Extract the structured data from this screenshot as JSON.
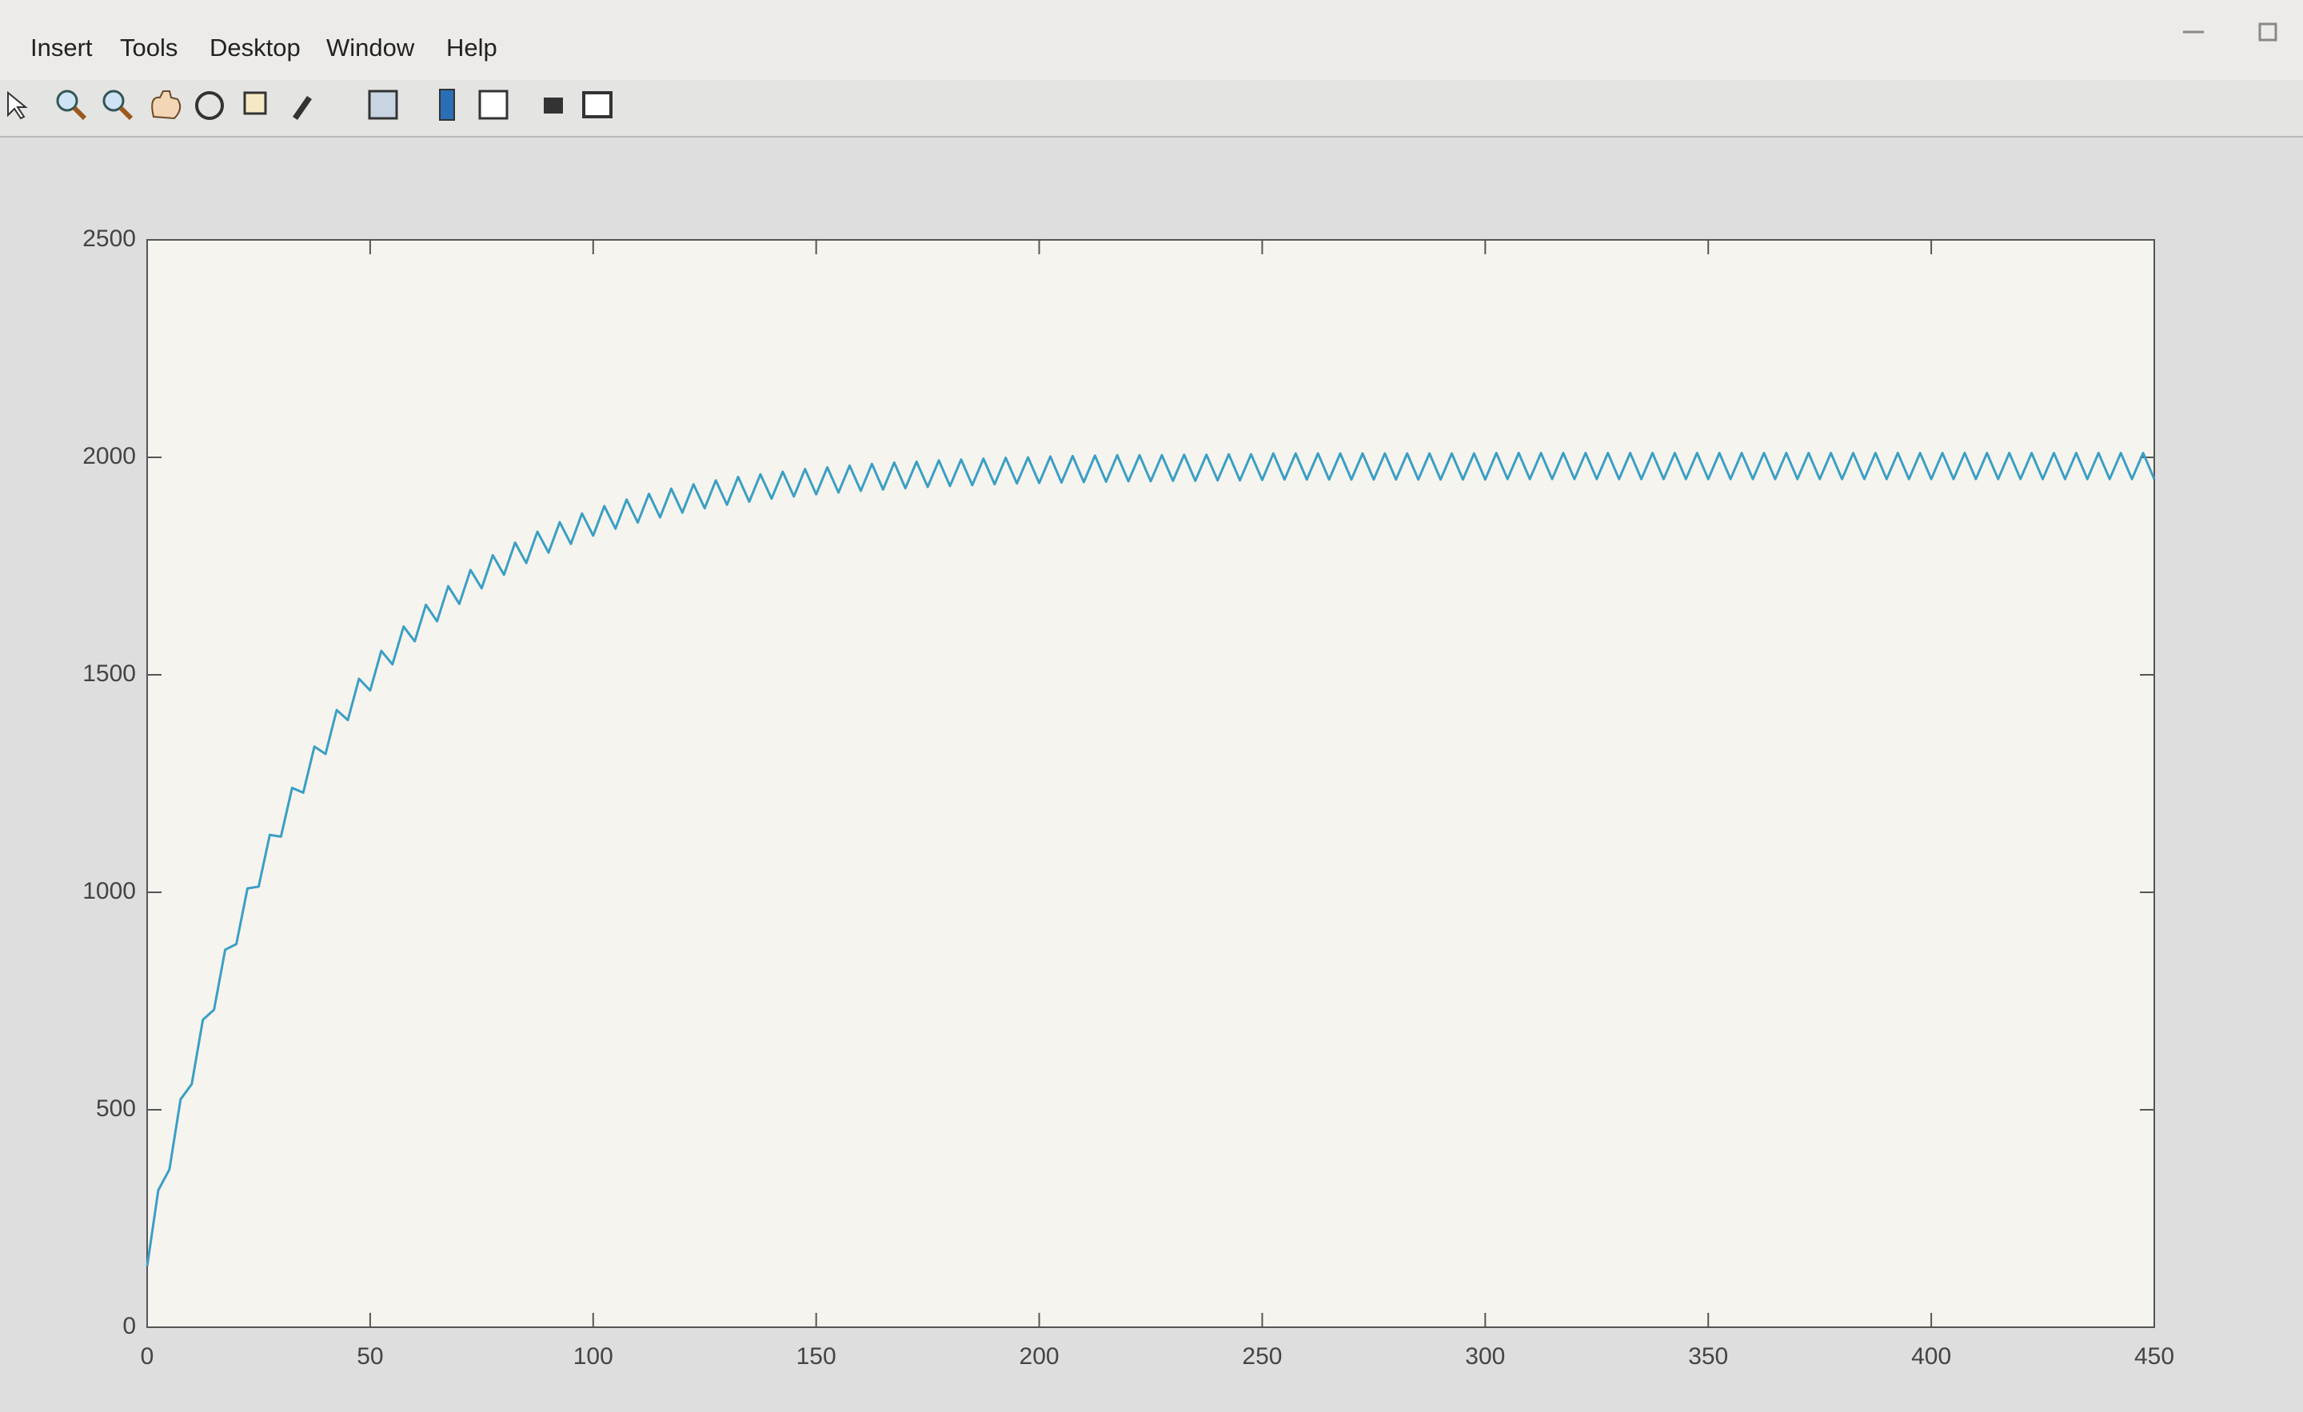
{
  "menu": [
    "Insert",
    "Tools",
    "Desktop",
    "Window",
    "Help"
  ],
  "chart_data": {
    "type": "line",
    "x": [
      0,
      2.5,
      5,
      7.5,
      10,
      12.5,
      15,
      17.5,
      20,
      22.5,
      25,
      27.5,
      30,
      32.5,
      35,
      37.5,
      40,
      42.5,
      45,
      47.5,
      50,
      52.5,
      55,
      57.5,
      60,
      62.5,
      65,
      67.5,
      70,
      72.5,
      75,
      77.5,
      80,
      82.5,
      85,
      87.5,
      90,
      92.5,
      95,
      97.5,
      100,
      102.5,
      105,
      107.5,
      110,
      112.5,
      115,
      117.5,
      120,
      122.5,
      125,
      127.5,
      130,
      132.5,
      135,
      137.5,
      140,
      142.5,
      145,
      147.5,
      150,
      152.5,
      155,
      157.5,
      160,
      162.5,
      165,
      167.5,
      170,
      172.5,
      175,
      177.5,
      180,
      182.5,
      185,
      187.5,
      190,
      192.5,
      195,
      197.5,
      200,
      202.5,
      205,
      207.5,
      210,
      212.5,
      215,
      217.5,
      220,
      222.5,
      225,
      227.5,
      230,
      232.5,
      235,
      237.5,
      240,
      242.5,
      245,
      247.5,
      250,
      252.5,
      255,
      257.5,
      260,
      262.5,
      265,
      267.5,
      270,
      272.5,
      275,
      277.5,
      280,
      282.5,
      285,
      287.5,
      290,
      292.5,
      295,
      297.5,
      300,
      302.5,
      305,
      307.5,
      310,
      312.5,
      315,
      317.5,
      320,
      322.5,
      325,
      327.5,
      330,
      332.5,
      335,
      337.5,
      340,
      342.5,
      345,
      347.5,
      350,
      352.5,
      355,
      357.5,
      360,
      362.5,
      365,
      367.5,
      370,
      372.5,
      375,
      377.5,
      380,
      382.5,
      385,
      387.5,
      390,
      392.5,
      395,
      397.5,
      400,
      402.5,
      405,
      407.5,
      410,
      412.5,
      415,
      417.5,
      420,
      422.5,
      425,
      427.5,
      430,
      432.5,
      435,
      437.5,
      440,
      442.5,
      445,
      447.5,
      450
    ],
    "values": [
      140,
      315,
      363,
      524,
      559,
      707,
      730,
      868,
      881,
      1009,
      1013,
      1132,
      1128,
      1240,
      1229,
      1335,
      1318,
      1419,
      1396,
      1491,
      1464,
      1555,
      1524,
      1611,
      1577,
      1661,
      1623,
      1704,
      1663,
      1741,
      1699,
      1775,
      1730,
      1804,
      1757,
      1829,
      1781,
      1851,
      1801,
      1871,
      1820,
      1888,
      1836,
      1903,
      1850,
      1916,
      1862,
      1928,
      1873,
      1938,
      1883,
      1947,
      1891,
      1955,
      1898,
      1961,
      1905,
      1967,
      1910,
      1973,
      1915,
      1977,
      1919,
      1981,
      1923,
      1985,
      1926,
      1988,
      1929,
      1990,
      1932,
      1993,
      1934,
      1995,
      1936,
      1997,
      1938,
      1999,
      1940,
      2000,
      1941,
      2002,
      1942,
      2003,
      1943,
      2004,
      1944,
      2005,
      1945,
      2005,
      1945,
      2005,
      1946,
      2006,
      1946,
      2006,
      1947,
      2007,
      1947,
      2007,
      1948,
      2009,
      1949,
      2009,
      1949,
      2009,
      1949,
      2009,
      1949,
      2009,
      1949,
      2009,
      1949,
      2009,
      1949,
      2009,
      1949,
      2009,
      1949,
      2009,
      1949,
      2010,
      1950,
      2010,
      1950,
      2010,
      1950,
      2010,
      1950,
      2010,
      1950,
      2010,
      1950,
      2010,
      1950,
      2010,
      1950,
      2010,
      1950,
      2010,
      1950,
      2010,
      1950,
      2010,
      1950,
      2010,
      1950,
      2010,
      1950,
      2010,
      1950,
      2010,
      1950,
      2010,
      1950,
      2010,
      1950,
      2010,
      1950,
      2010,
      1950,
      2010,
      1950,
      2010,
      1950,
      2010,
      1950,
      2010,
      1950,
      2010,
      1950,
      2010,
      1950,
      2010,
      1950,
      2010,
      1950,
      2010,
      1950,
      2010,
      1950
    ],
    "color": "#3a9fc4",
    "xlim": [
      0,
      450
    ],
    "xticks": [
      0,
      50,
      100,
      150,
      200,
      250,
      300,
      350,
      400,
      450
    ],
    "ylim": [
      0,
      2500
    ],
    "yticks": [
      0,
      500,
      1000,
      1500,
      2000,
      2500
    ],
    "grid": false
  }
}
